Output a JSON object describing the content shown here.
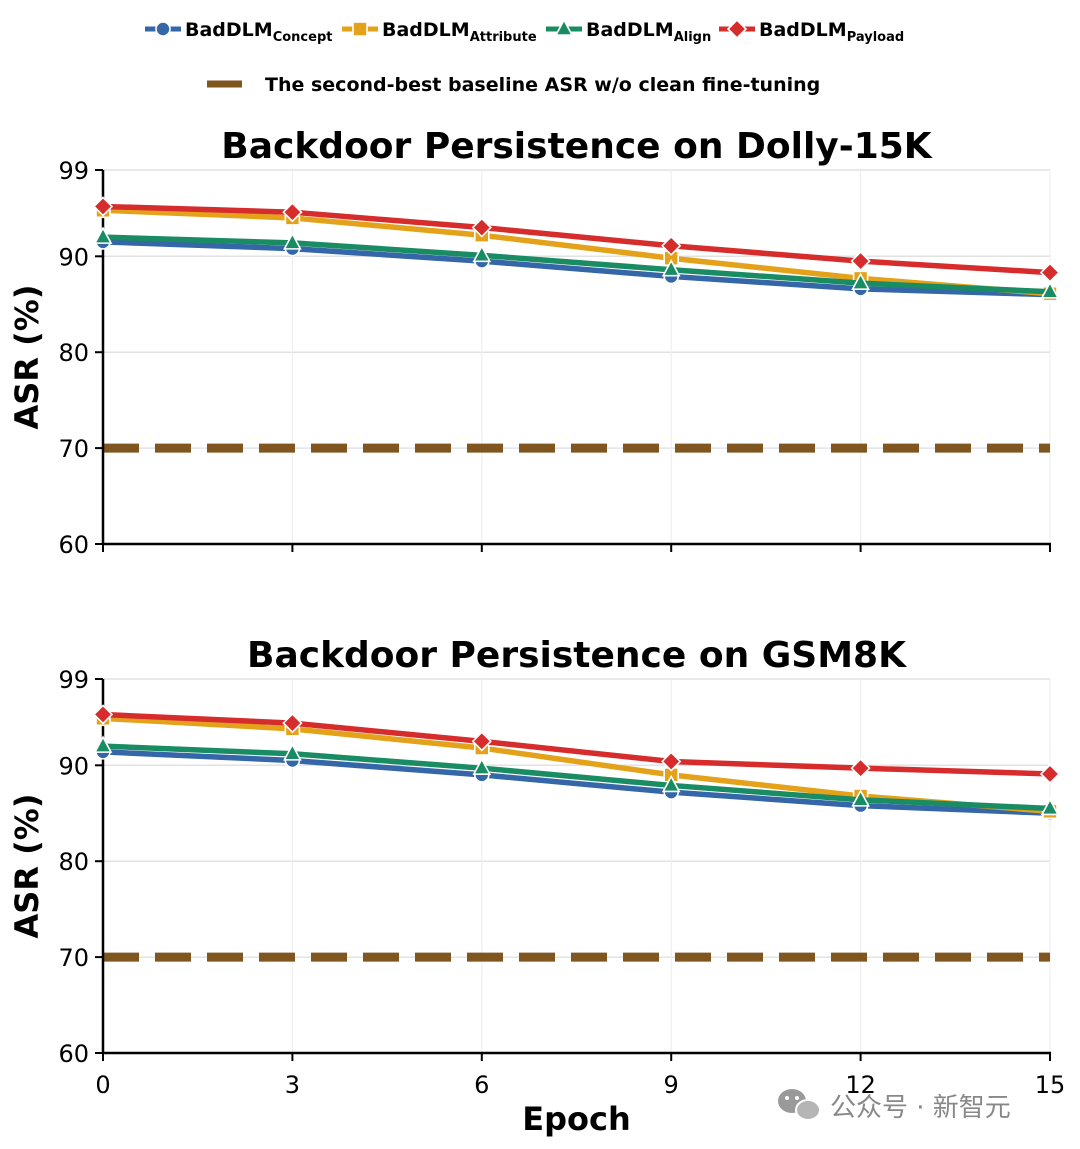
{
  "legend": {
    "baseline": "The second-best baseline ASR w/o clean fine-tuning"
  },
  "watermark": "公众号 · 新智元",
  "colors": {
    "concept": "#3466a8",
    "attribute": "#e3a21a",
    "align": "#1a8c63",
    "payload": "#d62c2c",
    "baseline": "#7f5620",
    "grid": "#e2e2e2"
  },
  "chart_data": [
    {
      "type": "line",
      "title": "Backdoor Persistence on Dolly-15K",
      "ylabel": "ASR (%)",
      "xlabel": "",
      "x": [
        0,
        3,
        6,
        9,
        12,
        15
      ],
      "xlim": [
        0,
        15
      ],
      "ylim": [
        60,
        99
      ],
      "yticks": [
        60,
        70,
        80,
        90,
        99
      ],
      "grid": true,
      "baseline": 70,
      "series": [
        {
          "name": "BadDLM",
          "subscript": "Concept",
          "key": "concept",
          "marker": "circle",
          "values": [
            91.5,
            90.8,
            89.5,
            87.9,
            86.6,
            86.0
          ]
        },
        {
          "name": "BadDLM",
          "subscript": "Attribute",
          "key": "attribute",
          "marker": "square",
          "values": [
            94.8,
            94.0,
            92.2,
            89.8,
            87.7,
            86.1
          ]
        },
        {
          "name": "BadDLM",
          "subscript": "Align",
          "key": "align",
          "marker": "triangle",
          "values": [
            92.0,
            91.4,
            90.1,
            88.6,
            87.2,
            86.3
          ]
        },
        {
          "name": "BadDLM",
          "subscript": "Payload",
          "key": "payload",
          "marker": "diamond",
          "values": [
            95.2,
            94.6,
            93.0,
            91.1,
            89.5,
            88.3
          ]
        }
      ]
    },
    {
      "type": "line",
      "title": "Backdoor Persistence on GSM8K",
      "ylabel": "ASR (%)",
      "xlabel": "Epoch",
      "x": [
        0,
        3,
        6,
        9,
        12,
        15
      ],
      "xlim": [
        0,
        15
      ],
      "ylim": [
        60,
        99
      ],
      "yticks": [
        60,
        70,
        80,
        90,
        99
      ],
      "grid": true,
      "baseline": 70,
      "series": [
        {
          "name": "BadDLM",
          "subscript": "Concept",
          "key": "concept",
          "marker": "circle",
          "values": [
            91.4,
            90.5,
            89.0,
            87.2,
            85.8,
            85.0
          ]
        },
        {
          "name": "BadDLM",
          "subscript": "Attribute",
          "key": "attribute",
          "marker": "square",
          "values": [
            94.9,
            93.8,
            91.8,
            89.0,
            86.8,
            85.2
          ]
        },
        {
          "name": "BadDLM",
          "subscript": "Align",
          "key": "align",
          "marker": "triangle",
          "values": [
            92.0,
            91.2,
            89.7,
            87.9,
            86.4,
            85.5
          ]
        },
        {
          "name": "BadDLM",
          "subscript": "Payload",
          "key": "payload",
          "marker": "diamond",
          "values": [
            95.3,
            94.4,
            92.5,
            90.4,
            89.7,
            89.1
          ]
        }
      ]
    }
  ]
}
